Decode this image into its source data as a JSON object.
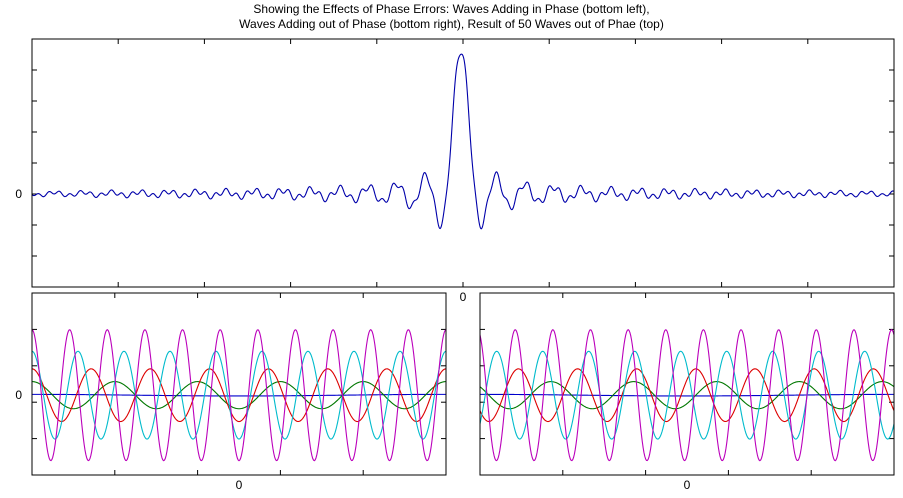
{
  "figure": {
    "title_lines": [
      "Showing the Effects of Phase Errors: Waves Adding in Phase (bottom left),",
      "Waves Adding out of Phase (bottom right), Result of 50 Waves out of Phae (top)"
    ]
  },
  "chart_data": [
    {
      "type": "line",
      "panel": "top",
      "grid": false,
      "x_tick_labels": [
        "0"
      ],
      "y_tick_labels": [
        "0"
      ],
      "series": [
        {
          "color": "#0000aa",
          "x": [
            -1.0,
            -0.8,
            -0.6,
            -0.4,
            -0.2,
            -0.12,
            -0.08,
            -0.05,
            -0.02,
            0.0,
            0.015,
            0.035,
            0.06,
            0.1,
            0.2,
            0.4,
            0.6,
            0.8,
            1.0
          ],
          "y": [
            0.0,
            0.01,
            0.02,
            0.03,
            0.06,
            0.1,
            -0.12,
            0.1,
            -0.5,
            1.0,
            -0.6,
            0.08,
            0.08,
            0.06,
            0.03,
            0.02,
            0.01,
            0.0,
            0.0
          ]
        }
      ]
    },
    {
      "type": "line",
      "panel": "bottom-left",
      "grid": false,
      "x_tick_labels": [
        "0"
      ],
      "y_tick_labels": [
        "0"
      ],
      "series": [
        {
          "color": "#0000cc",
          "amplitude": 0.01,
          "cycles": 0.5,
          "phase": 0
        },
        {
          "color": "#007700",
          "amplitude": 0.17,
          "cycles": 2.5,
          "phase": 0
        },
        {
          "color": "#dd0000",
          "amplitude": 0.33,
          "cycles": 3.5,
          "phase": 0
        },
        {
          "color": "#00bbcc",
          "amplitude": 0.55,
          "cycles": 4.5,
          "phase": 0
        },
        {
          "color": "#bb00bb",
          "amplitude": 0.82,
          "cycles": 5.5,
          "phase": 0
        }
      ]
    },
    {
      "type": "line",
      "panel": "bottom-right",
      "grid": false,
      "x_tick_labels": [
        "0"
      ],
      "y_tick_labels": [],
      "series": [
        {
          "color": "#0000cc",
          "amplitude": 0.01,
          "cycles": 0.5,
          "phase": 0
        },
        {
          "color": "#007700",
          "amplitude": 0.17,
          "cycles": 2.5,
          "phase": 0.9
        },
        {
          "color": "#dd0000",
          "amplitude": 0.33,
          "cycles": 3.5,
          "phase": 2.2
        },
        {
          "color": "#00bbcc",
          "amplitude": 0.55,
          "cycles": 4.5,
          "phase": 4.0
        },
        {
          "color": "#bb00bb",
          "amplitude": 0.82,
          "cycles": 5.5,
          "phase": 0.4
        }
      ]
    }
  ]
}
